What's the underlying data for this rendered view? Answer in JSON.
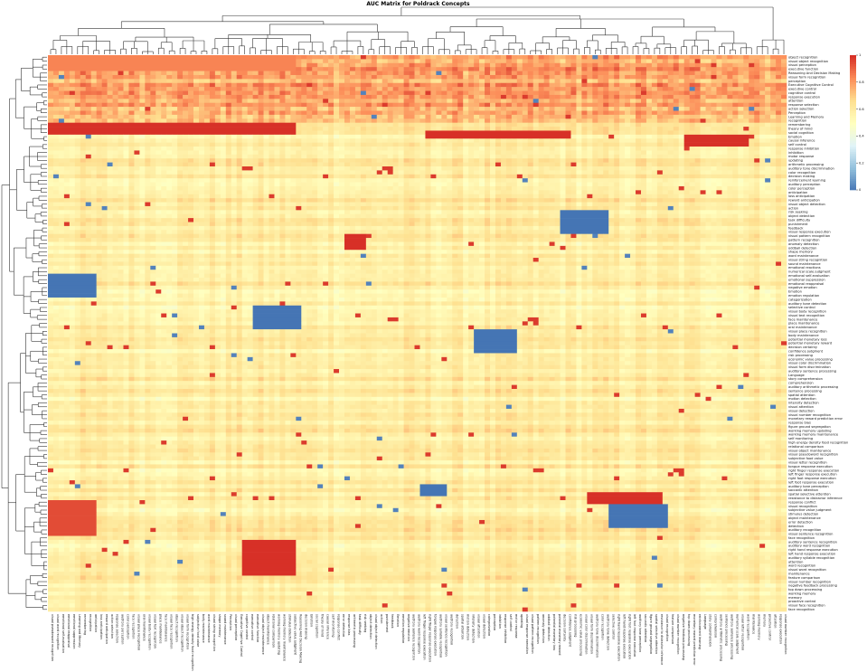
{
  "chart_data": {
    "type": "heatmap",
    "title": "AUC Matrix for Poldrack Concepts",
    "colorbar": {
      "min": 0,
      "max": 1,
      "ticks": [
        "0",
        "0.2",
        "0.4",
        "0.6",
        "0.8",
        "1"
      ],
      "colors": [
        "#4575b4",
        "#91bfdb",
        "#e0f3f8",
        "#ffffbf",
        "#fee090",
        "#fc8d59",
        "#d73027"
      ]
    },
    "row_dendrogram": true,
    "column_dendrogram": true,
    "row_labels": [
      "object recognition",
      "visual object recognition",
      "visual perception",
      "executive function",
      "Reasoning And Decision Making",
      "visual form recognition",
      "perception",
      "Executive Cognitive Control",
      "executive control",
      "cognitive control",
      "response execution",
      "attention",
      "response selection",
      "action selection",
      "Perception",
      "Learning and Memory",
      "recognition",
      "remembering",
      "theory of mind",
      "social cognition",
      "Emotion",
      "causal inference",
      "self control",
      "response inhibition",
      "inhibition",
      "motor response",
      "updating",
      "arithmetic processing",
      "auditory tone discrimination",
      "color recognition",
      "decision making",
      "reinforcement learning",
      "auditory perception",
      "color perception",
      "anticipation",
      "loss anticipation",
      "reward anticipation",
      "visual object detection",
      "action",
      "risk seeking",
      "object detection",
      "task difficulty",
      "punishment",
      "feedback",
      "visual response execution",
      "visual pattern recognition",
      "pattern recognition",
      "anomaly detection",
      "oddball detection",
      "shape memory",
      "word maintenance",
      "visual string recognition",
      "sound maintenance",
      "emotional reactions",
      "numerical scale judgment",
      "emotional self-evaluation",
      "emotional suppression",
      "emotional reappraisal",
      "negative emotion",
      "Emotion",
      "emotion regulation",
      "categorization",
      "auditory tone detection",
      "selective control",
      "visual body recognition",
      "visual text recognition",
      "face maintenance",
      "place maintenance",
      "oral maintenance",
      "visual place recognition",
      "body maintenance",
      "potential monetary loss",
      "potential monetary reward",
      "decision certainty",
      "confidence judgment",
      "risk processing",
      "economic value processing",
      "visual color discrimination",
      "visual form discrimination",
      "auditory sentence processing",
      "Language",
      "story comprehension",
      "comprehension",
      "auditory arithmetic processing",
      "sentence processing",
      "spatial attention",
      "motion detection",
      "intensity detection",
      "visual attention",
      "visual detection",
      "visual number recognition",
      "monetary reward prediction error",
      "response bias",
      "figure ground segregation",
      "working memory updating",
      "working memory maintenance",
      "self monitoring",
      "high energy density food recognition",
      "relational comparison",
      "visual object maintenance",
      "visual pseudoword recognition",
      "subjective food value",
      "visual letter recognition",
      "tongue response execution",
      "right finger response execution",
      "left finger response execution",
      "right foot response execution",
      "left foot response execution",
      "auditory tone perception",
      "saccadic attention",
      "spatial selective attention",
      "resistance to distractor inference",
      "response conflict",
      "visual recognition",
      "subjective value judgment",
      "stimulus detection",
      "object maintenance",
      "error detection",
      "detection",
      "auditory recognition",
      "visual sentence recognition",
      "face recognition",
      "auditory sentence recognition",
      "auditory word recognition",
      "right hand response execution",
      "left hand response execution",
      "auditory syllable recognition",
      "attention",
      "word recognition",
      "visual word recognition",
      "maintenance",
      "feature comparison",
      "visual number recognition",
      "negative feedback processing",
      "top down processing",
      "working memory",
      "memory",
      "proactive control",
      "visual face recognition",
      "face recognition"
    ],
    "column_labels": [
      "visual pseudoword recognition",
      "visual word recognition",
      "emotional self-evaluation",
      "emotional reappraisal",
      "emotional suppression",
      "Learning and Memory",
      "remembering",
      "recognition",
      "anticipation",
      "loss anticipation",
      "reward anticipation",
      "action selection",
      "response selection",
      "auditory perception",
      "color perception",
      "face recognition",
      "visual place recognition",
      "oral maintenance",
      "visual body recognition",
      "visual text recognition",
      "place maintenance",
      "face maintenance",
      "visual face recognition",
      "object recognition",
      "visual object recognition",
      "visual form recognition",
      "high energy density food recognition",
      "subjective food value",
      "body maintenance",
      "word maintenance",
      "visual string recognition",
      "shape memory",
      "sound maintenance",
      "Perception",
      "visual perception",
      "Executive Cognitive Control",
      "cognitive control",
      "executive control",
      "executive function",
      "visual object maintenance",
      "object maintenance",
      "relational comparison",
      "working memory updating",
      "working memory maintenance",
      "stimulus detection",
      "subjective value judgment",
      "Reasoning And Decision Making",
      "decision making",
      "Emotion",
      "social cognition",
      "theory of mind",
      "causal inference",
      "self monitoring",
      "response conflict",
      "error detection",
      "response bias",
      "arithmetic processing",
      "task difficulty",
      "risk seeking",
      "object detection",
      "visual object detection",
      "action",
      "punishment",
      "feedback",
      "Emotion",
      "emotion regulation",
      "negative emotion",
      "auditory sentence recognition",
      "auditory word recognition",
      "left finger response execution",
      "right finger response execution",
      "tongue response execution",
      "auditory syllable recognition",
      "visual sentence recognition",
      "auditory recognition",
      "detection",
      "spatial attention",
      "motion detection",
      "intensity detection",
      "visual attention",
      "visual detection",
      "categorization",
      "perception",
      "inhibition",
      "response inhibition",
      "self control",
      "motor response",
      "updating",
      "visual response execution",
      "visual pattern recognition",
      "pattern recognition",
      "anomaly detection",
      "oddball detection",
      "potential monetary loss",
      "potential monetary reward",
      "decision certainty",
      "confidence judgment",
      "risk processing",
      "economic value processing",
      "visual color discrimination",
      "visual form discrimination",
      "auditory tone discrimination",
      "color recognition",
      "auditory tone detection",
      "selective control",
      "right hand response execution",
      "left hand response execution",
      "right foot response execution",
      "left foot response execution",
      "auditory tone perception",
      "saccadic attention",
      "figure ground segregation",
      "spatial selective attention",
      "resistance to distractor inference",
      "visual recognition",
      "feature comparison",
      "visual number recognition",
      "negative feedback processing",
      "top down processing",
      "monetary reward prediction error",
      "reinforcement learning",
      "Language",
      "story comprehension",
      "comprehension",
      "auditory arithmetic processing",
      "sentence processing",
      "auditory sentence processing",
      "numerical scale judgment",
      "visual letter recognition",
      "word recognition",
      "maintenance",
      "working memory",
      "memory",
      "proactive control",
      "attention",
      "response execution",
      "visual number recognition"
    ],
    "blocks": [
      {
        "r0": 55,
        "r1": 61,
        "c0": 0,
        "c1": 9,
        "value": 0
      },
      {
        "r0": 63,
        "r1": 69,
        "c0": 38,
        "c1": 47,
        "value": 0
      },
      {
        "r0": 69,
        "r1": 75,
        "c0": 79,
        "c1": 87,
        "value": 0
      },
      {
        "r0": 39,
        "r1": 45,
        "c0": 95,
        "c1": 104,
        "value": 0
      },
      {
        "r0": 113,
        "r1": 119,
        "c0": 104,
        "c1": 115,
        "value": 0
      },
      {
        "r0": 84,
        "r1": 88,
        "c0": 158,
        "c1": 165,
        "value": 0
      },
      {
        "r0": 96,
        "r1": 100,
        "c0": 162,
        "c1": 170,
        "value": 0.05
      },
      {
        "r0": 77,
        "r1": 80,
        "c0": 180,
        "c1": 187,
        "value": 0
      },
      {
        "r0": 108,
        "r1": 111,
        "c0": 69,
        "c1": 74,
        "value": 0
      },
      {
        "r0": 40,
        "r1": 48,
        "c0": 160,
        "c1": 168,
        "value": 1
      },
      {
        "r0": 68,
        "r1": 73,
        "c0": 139,
        "c1": 143,
        "value": 1
      },
      {
        "r0": 0,
        "r1": 4,
        "c0": 0,
        "c1": 46,
        "value": 0.85
      },
      {
        "r0": 17,
        "r1": 20,
        "c0": 0,
        "c1": 46,
        "value": 1
      },
      {
        "r0": 17,
        "r1": 20,
        "c0": 155,
        "c1": 187,
        "value": 0.95
      },
      {
        "r0": 112,
        "r1": 121,
        "c0": 0,
        "c1": 9,
        "value": 0.95
      },
      {
        "r0": 122,
        "r1": 131,
        "c0": 36,
        "c1": 46,
        "value": 1
      },
      {
        "r0": 45,
        "r1": 49,
        "c0": 55,
        "c1": 59,
        "value": 1
      },
      {
        "r0": 19,
        "r1": 21,
        "c0": 70,
        "c1": 97,
        "value": 1
      },
      {
        "r0": 20,
        "r1": 23,
        "c0": 118,
        "c1": 130,
        "value": 1
      },
      {
        "r0": 110,
        "r1": 113,
        "c0": 100,
        "c1": 114,
        "value": 1
      }
    ]
  }
}
